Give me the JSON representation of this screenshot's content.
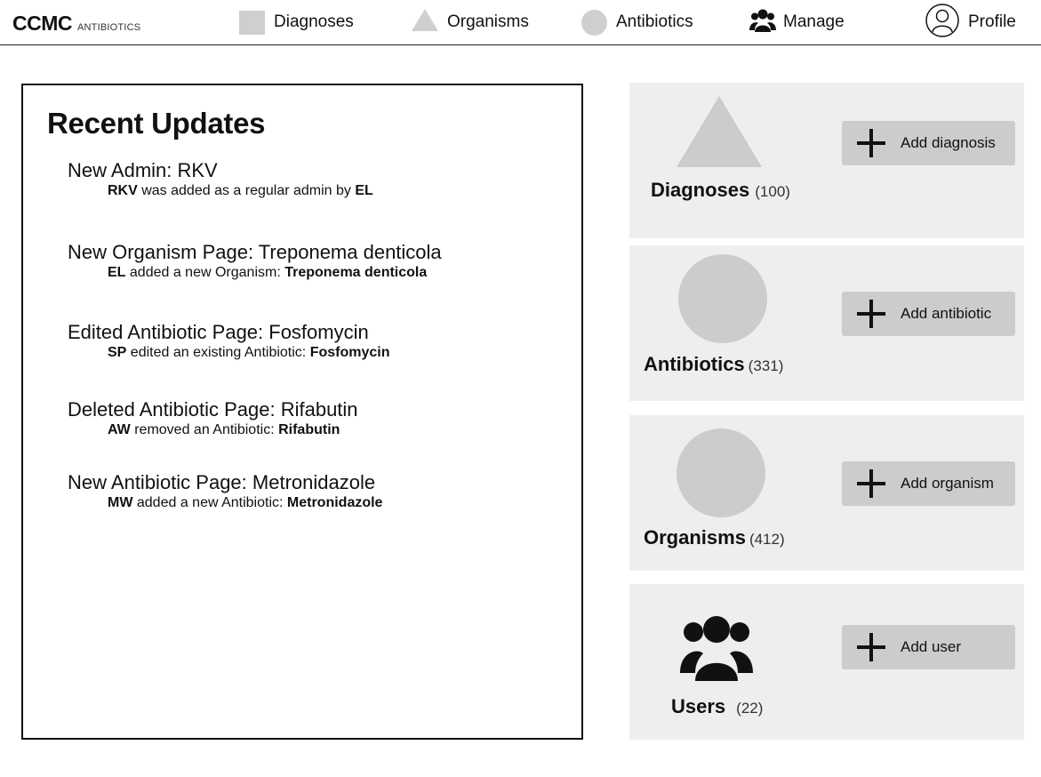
{
  "brand": {
    "name": "CCMC",
    "sub": "ANTIBIOTICS"
  },
  "nav": {
    "diagnoses": {
      "label": "Diagnoses",
      "icon": "square-icon"
    },
    "organisms": {
      "label": "Organisms",
      "icon": "triangle-icon"
    },
    "antibiotics": {
      "label": "Antibiotics",
      "icon": "circle-icon"
    },
    "manage": {
      "label": "Manage",
      "icon": "users-icon"
    },
    "profile": {
      "label": "Profile",
      "icon": "profile-icon"
    }
  },
  "updates": {
    "title": "Recent Updates",
    "items": [
      {
        "title": "New Admin: RKV",
        "actor": "RKV",
        "text": " was added as a regular admin by ",
        "target": "EL"
      },
      {
        "title": "New Organism Page: Treponema denticola",
        "actor": "EL",
        "text": " added a new Organism: ",
        "target": "Treponema denticola"
      },
      {
        "title": "Edited Antibiotic Page: Fosfomycin",
        "actor": "SP",
        "text": " edited an existing Antibiotic: ",
        "target": "Fosfomycin"
      },
      {
        "title": "Deleted Antibiotic Page: Rifabutin",
        "actor": "AW",
        "text": " removed an Antibiotic: ",
        "target": "Rifabutin"
      },
      {
        "title": "New Antibiotic Page: Metronidazole",
        "actor": "MW",
        "text": " added a new Antibiotic: ",
        "target": "Metronidazole"
      }
    ]
  },
  "cards": {
    "diagnoses": {
      "name": "Diagnoses",
      "count": "(100)",
      "button": "Add diagnosis"
    },
    "antibiotics": {
      "name": "Antibiotics",
      "count": "(331)",
      "button": "Add antibiotic"
    },
    "organisms": {
      "name": "Organisms",
      "count": "(412)",
      "button": "Add organism"
    },
    "users": {
      "name": "Users",
      "count": "(22)",
      "button": "Add user"
    }
  },
  "colors": {
    "shape_gray": "#cccccc",
    "card_bg": "#eeeeee",
    "button_bg": "#cccccc"
  }
}
